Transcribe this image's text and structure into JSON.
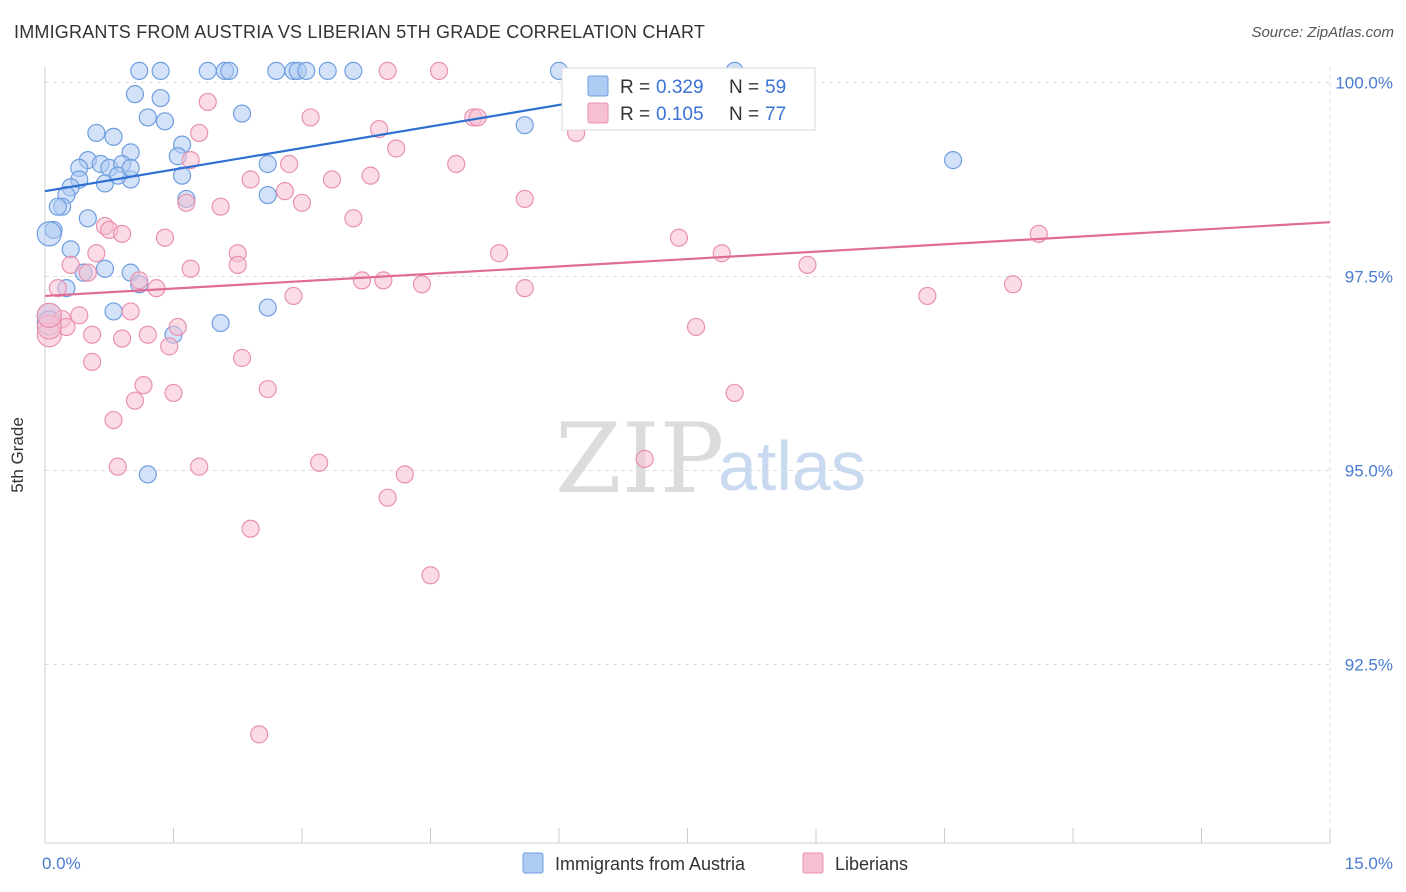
{
  "title": "IMMIGRANTS FROM AUSTRIA VS LIBERIAN 5TH GRADE CORRELATION CHART",
  "source": "Source: ZipAtlas.com",
  "watermark": {
    "zip": "ZIP",
    "atlas": "atlas"
  },
  "legend": {
    "r_label": "R =",
    "n_label": "N =",
    "series": [
      {
        "r": "0.329",
        "n": "59"
      },
      {
        "r": "0.105",
        "n": "77"
      }
    ]
  },
  "bottom_legend": [
    "Immigrants from Austria",
    "Liberians"
  ],
  "colors": {
    "blue_fill": "#aecbf2",
    "blue_stroke": "#6f9ee0",
    "blue_line": "#2f6fd0",
    "pink_fill": "#f7c0d2",
    "pink_stroke": "#e891b0",
    "pink_line": "#e06c95",
    "tick_text": "#4a7bd0",
    "grid": "#dddddd"
  },
  "chart_data": {
    "type": "scatter",
    "title": "IMMIGRANTS FROM AUSTRIA VS LIBERIAN 5TH GRADE CORRELATION CHART",
    "xlabel": "",
    "ylabel": "5th Grade",
    "xlim": [
      0,
      15
    ],
    "ylim": [
      90.2,
      100.2
    ],
    "x_tick_labels": [
      {
        "v": 0,
        "label": "0.0%"
      },
      {
        "v": 15,
        "label": "15.0%"
      }
    ],
    "x_minor_ticks": [
      0,
      1.5,
      3,
      4.5,
      6,
      7.5,
      9,
      10.5,
      12,
      13.5,
      15
    ],
    "y_ticks": [
      {
        "v": 100.0,
        "label": "100.0%"
      },
      {
        "v": 97.5,
        "label": "97.5%"
      },
      {
        "v": 95.0,
        "label": "95.0%"
      },
      {
        "v": 92.5,
        "label": "92.5%"
      }
    ],
    "grid": true,
    "legend_placement": "top-center",
    "series": [
      {
        "name": "Immigrants from Austria",
        "r": 0.329,
        "n": 59,
        "trend": [
          [
            0,
            98.6
          ],
          [
            8.1,
            100.1
          ]
        ],
        "points": [
          [
            1.1,
            100.15
          ],
          [
            1.35,
            100.15
          ],
          [
            1.9,
            100.15
          ],
          [
            2.1,
            100.15
          ],
          [
            2.15,
            100.15
          ],
          [
            2.7,
            100.15
          ],
          [
            2.9,
            100.15
          ],
          [
            2.95,
            100.15
          ],
          [
            3.05,
            100.15
          ],
          [
            3.3,
            100.15
          ],
          [
            3.6,
            100.15
          ],
          [
            6.0,
            100.15
          ],
          [
            8.05,
            100.15
          ],
          [
            1.05,
            99.85
          ],
          [
            1.35,
            99.8
          ],
          [
            2.3,
            99.6
          ],
          [
            1.2,
            99.55
          ],
          [
            1.4,
            99.5
          ],
          [
            5.6,
            99.45
          ],
          [
            0.6,
            99.35
          ],
          [
            0.8,
            99.3
          ],
          [
            1.6,
            99.2
          ],
          [
            1.0,
            99.1
          ],
          [
            0.5,
            99.0
          ],
          [
            0.65,
            98.95
          ],
          [
            0.4,
            98.9
          ],
          [
            0.75,
            98.9
          ],
          [
            0.9,
            98.95
          ],
          [
            2.6,
            98.95
          ],
          [
            10.6,
            99.0
          ],
          [
            1.6,
            98.8
          ],
          [
            0.4,
            98.75
          ],
          [
            1.0,
            98.75
          ],
          [
            0.7,
            98.7
          ],
          [
            0.3,
            98.65
          ],
          [
            0.25,
            98.55
          ],
          [
            1.65,
            98.5
          ],
          [
            2.6,
            98.55
          ],
          [
            0.2,
            98.4
          ],
          [
            0.15,
            98.4
          ],
          [
            0.5,
            98.25
          ],
          [
            0.1,
            98.1
          ],
          [
            0.05,
            98.05
          ],
          [
            0.3,
            97.85
          ],
          [
            0.45,
            97.55
          ],
          [
            1.0,
            97.55
          ],
          [
            1.1,
            97.4
          ],
          [
            0.8,
            97.05
          ],
          [
            2.6,
            97.1
          ],
          [
            2.05,
            96.9
          ],
          [
            1.5,
            96.75
          ],
          [
            1.2,
            94.95
          ],
          [
            0.05,
            97.0
          ],
          [
            0.05,
            96.9
          ],
          [
            0.7,
            97.6
          ],
          [
            0.25,
            97.35
          ],
          [
            1.55,
            99.05
          ],
          [
            0.85,
            98.8
          ],
          [
            1.0,
            98.9
          ]
        ]
      },
      {
        "name": "Liberians",
        "r": 0.105,
        "n": 77,
        "trend": [
          [
            0,
            97.25
          ],
          [
            15,
            98.2
          ]
        ],
        "points": [
          [
            4.0,
            100.15
          ],
          [
            4.6,
            100.15
          ],
          [
            1.9,
            99.75
          ],
          [
            3.1,
            99.55
          ],
          [
            5.0,
            99.55
          ],
          [
            5.05,
            99.55
          ],
          [
            1.8,
            99.35
          ],
          [
            6.2,
            99.35
          ],
          [
            3.9,
            99.4
          ],
          [
            4.1,
            99.15
          ],
          [
            1.7,
            99.0
          ],
          [
            2.85,
            98.95
          ],
          [
            4.8,
            98.95
          ],
          [
            3.8,
            98.8
          ],
          [
            2.4,
            98.75
          ],
          [
            3.35,
            98.75
          ],
          [
            2.8,
            98.6
          ],
          [
            5.6,
            98.5
          ],
          [
            1.65,
            98.45
          ],
          [
            2.05,
            98.4
          ],
          [
            3.0,
            98.45
          ],
          [
            3.6,
            98.25
          ],
          [
            0.7,
            98.15
          ],
          [
            0.75,
            98.1
          ],
          [
            0.9,
            98.05
          ],
          [
            1.4,
            98.0
          ],
          [
            7.4,
            98.0
          ],
          [
            11.6,
            98.05
          ],
          [
            0.6,
            97.8
          ],
          [
            2.25,
            97.8
          ],
          [
            5.3,
            97.8
          ],
          [
            7.9,
            97.8
          ],
          [
            0.3,
            97.65
          ],
          [
            2.25,
            97.65
          ],
          [
            1.7,
            97.6
          ],
          [
            8.9,
            97.65
          ],
          [
            0.5,
            97.55
          ],
          [
            1.1,
            97.45
          ],
          [
            1.3,
            97.35
          ],
          [
            3.7,
            97.45
          ],
          [
            3.95,
            97.45
          ],
          [
            4.4,
            97.4
          ],
          [
            5.6,
            97.35
          ],
          [
            0.15,
            97.35
          ],
          [
            11.3,
            97.4
          ],
          [
            2.9,
            97.25
          ],
          [
            10.3,
            97.25
          ],
          [
            0.4,
            97.0
          ],
          [
            1.0,
            97.05
          ],
          [
            1.55,
            96.85
          ],
          [
            0.2,
            96.95
          ],
          [
            0.25,
            96.85
          ],
          [
            0.55,
            96.75
          ],
          [
            0.9,
            96.7
          ],
          [
            1.2,
            96.75
          ],
          [
            1.45,
            96.6
          ],
          [
            7.6,
            96.85
          ],
          [
            0.55,
            96.4
          ],
          [
            2.3,
            96.45
          ],
          [
            1.15,
            96.1
          ],
          [
            1.5,
            96.0
          ],
          [
            2.6,
            96.05
          ],
          [
            1.05,
            95.9
          ],
          [
            8.05,
            96.0
          ],
          [
            0.8,
            95.65
          ],
          [
            0.85,
            95.05
          ],
          [
            1.8,
            95.05
          ],
          [
            3.2,
            95.1
          ],
          [
            4.2,
            94.95
          ],
          [
            7.0,
            95.15
          ],
          [
            4.0,
            94.65
          ],
          [
            2.4,
            94.25
          ],
          [
            4.5,
            93.65
          ],
          [
            2.5,
            91.6
          ],
          [
            0.05,
            96.75
          ],
          [
            0.05,
            96.85
          ],
          [
            0.05,
            97.0
          ]
        ]
      }
    ]
  }
}
